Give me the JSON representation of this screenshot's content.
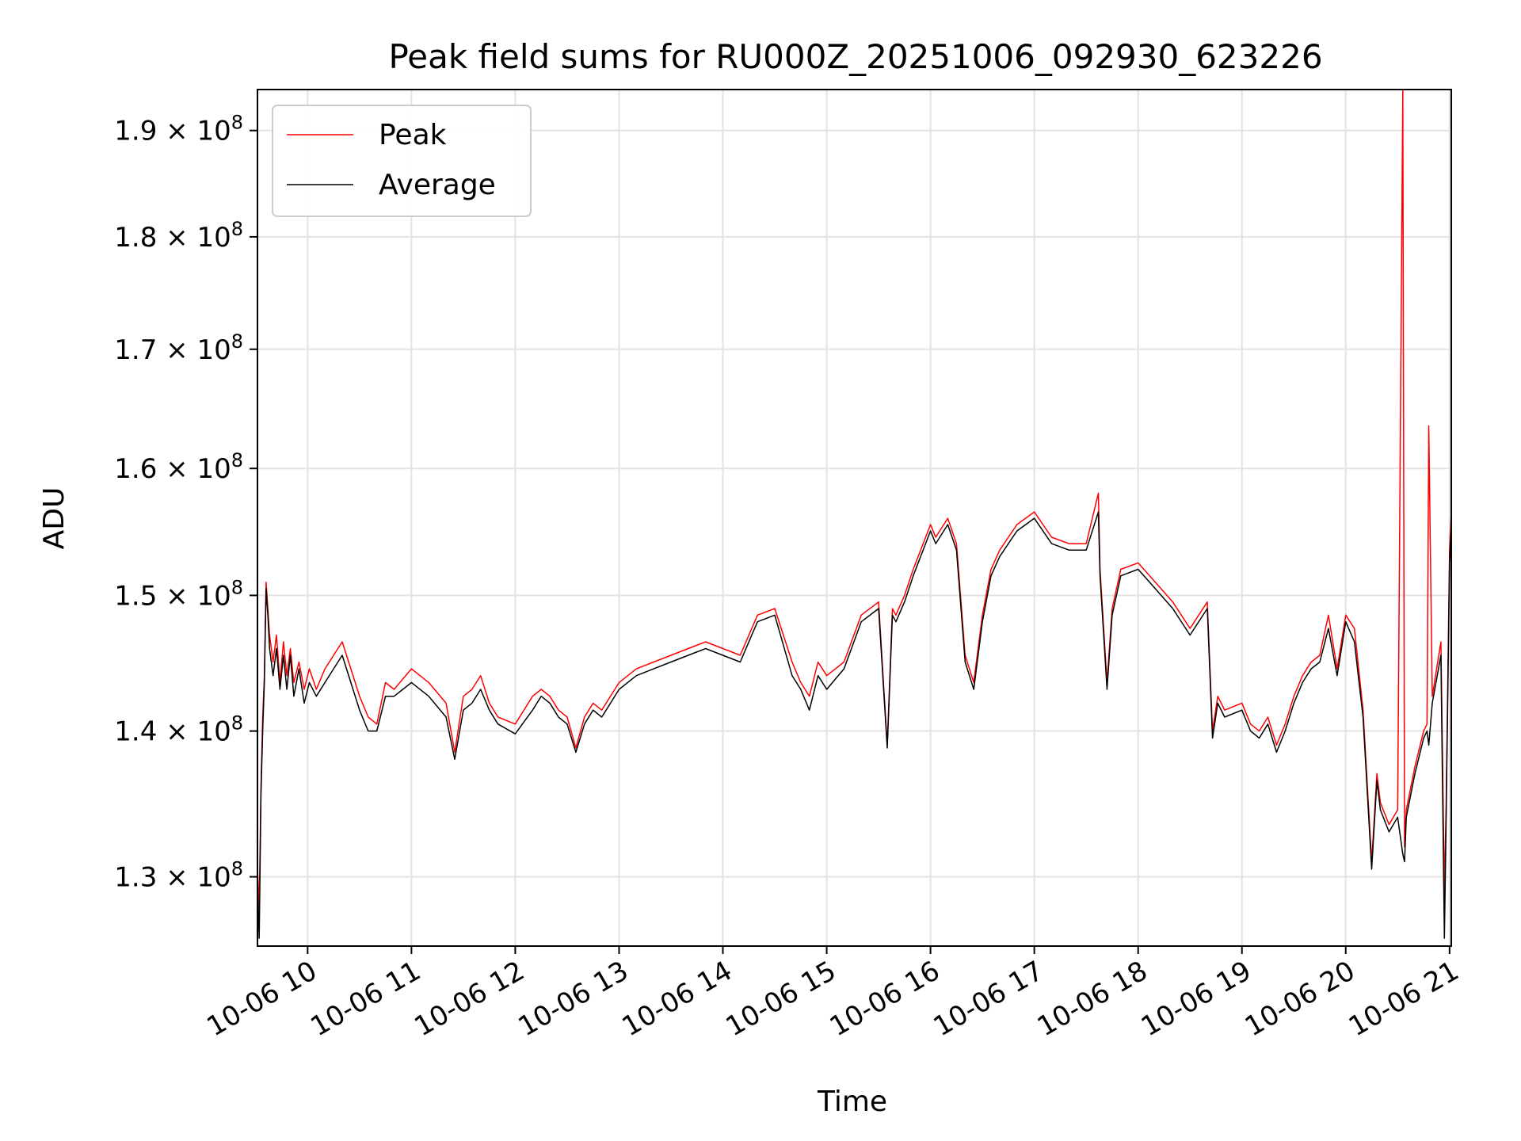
{
  "chart_data": {
    "type": "line",
    "title": "Peak field sums for RU000Z_20251006_092930_623226",
    "xlabel": "Time",
    "ylabel": "ADU",
    "yscale": "log",
    "grid": true,
    "legend_placement": "upper-left",
    "xlim": [
      "2025-10-06 09:31",
      "2025-10-06 21:01"
    ],
    "ylim": [
      125500000,
      194000000
    ],
    "x_ticks": [
      "10-06 10",
      "10-06 11",
      "10-06 12",
      "10-06 13",
      "10-06 14",
      "10-06 15",
      "10-06 16",
      "10-06 17",
      "10-06 18",
      "10-06 19",
      "10-06 20",
      "10-06 21"
    ],
    "y_ticks": [
      {
        "value": 130000000,
        "mantissa": "1.3",
        "base": "10",
        "exp": "8"
      },
      {
        "value": 140000000,
        "mantissa": "1.4",
        "base": "10",
        "exp": "8"
      },
      {
        "value": 150000000,
        "mantissa": "1.5",
        "base": "10",
        "exp": "8"
      },
      {
        "value": 160000000,
        "mantissa": "1.6",
        "base": "10",
        "exp": "8"
      },
      {
        "value": 170000000,
        "mantissa": "1.7",
        "base": "10",
        "exp": "8"
      },
      {
        "value": 180000000,
        "mantissa": "1.8",
        "base": "10",
        "exp": "8"
      },
      {
        "value": 190000000,
        "mantissa": "1.9",
        "base": "10",
        "exp": "8"
      }
    ],
    "series": [
      {
        "name": "Peak",
        "color": "#ff0000",
        "x": [
          "2025-10-06 09:31",
          "2025-10-06 09:32",
          "2025-10-06 09:33",
          "2025-10-06 09:34",
          "2025-10-06 09:35",
          "2025-10-06 09:36",
          "2025-10-06 09:37",
          "2025-10-06 09:38",
          "2025-10-06 09:40",
          "2025-10-06 09:42",
          "2025-10-06 09:44",
          "2025-10-06 09:46",
          "2025-10-06 09:48",
          "2025-10-06 09:50",
          "2025-10-06 09:52",
          "2025-10-06 09:55",
          "2025-10-06 09:58",
          "2025-10-06 10:01",
          "2025-10-06 10:05",
          "2025-10-06 10:10",
          "2025-10-06 10:15",
          "2025-10-06 10:20",
          "2025-10-06 10:25",
          "2025-10-06 10:30",
          "2025-10-06 10:35",
          "2025-10-06 10:40",
          "2025-10-06 10:45",
          "2025-10-06 10:50",
          "2025-10-06 11:00",
          "2025-10-06 11:10",
          "2025-10-06 11:20",
          "2025-10-06 11:25",
          "2025-10-06 11:30",
          "2025-10-06 11:35",
          "2025-10-06 11:40",
          "2025-10-06 11:45",
          "2025-10-06 11:50",
          "2025-10-06 12:00",
          "2025-10-06 12:10",
          "2025-10-06 12:15",
          "2025-10-06 12:20",
          "2025-10-06 12:25",
          "2025-10-06 12:30",
          "2025-10-06 12:35",
          "2025-10-06 12:40",
          "2025-10-06 12:45",
          "2025-10-06 12:50",
          "2025-10-06 13:00",
          "2025-10-06 13:10",
          "2025-10-06 13:20",
          "2025-10-06 13:30",
          "2025-10-06 13:40",
          "2025-10-06 13:50",
          "2025-10-06 14:00",
          "2025-10-06 14:10",
          "2025-10-06 14:20",
          "2025-10-06 14:30",
          "2025-10-06 14:40",
          "2025-10-06 14:45",
          "2025-10-06 14:50",
          "2025-10-06 14:55",
          "2025-10-06 15:00",
          "2025-10-06 15:10",
          "2025-10-06 15:20",
          "2025-10-06 15:30",
          "2025-10-06 15:35",
          "2025-10-06 15:38",
          "2025-10-06 15:40",
          "2025-10-06 15:45",
          "2025-10-06 15:50",
          "2025-10-06 16:00",
          "2025-10-06 16:03",
          "2025-10-06 16:10",
          "2025-10-06 16:15",
          "2025-10-06 16:20",
          "2025-10-06 16:25",
          "2025-10-06 16:30",
          "2025-10-06 16:35",
          "2025-10-06 16:40",
          "2025-10-06 16:45",
          "2025-10-06 16:50",
          "2025-10-06 17:00",
          "2025-10-06 17:10",
          "2025-10-06 17:20",
          "2025-10-06 17:30",
          "2025-10-06 17:37",
          "2025-10-06 17:38",
          "2025-10-06 17:42",
          "2025-10-06 17:45",
          "2025-10-06 17:50",
          "2025-10-06 18:00",
          "2025-10-06 18:10",
          "2025-10-06 18:20",
          "2025-10-06 18:30",
          "2025-10-06 18:40",
          "2025-10-06 18:43",
          "2025-10-06 18:46",
          "2025-10-06 18:50",
          "2025-10-06 19:00",
          "2025-10-06 19:05",
          "2025-10-06 19:10",
          "2025-10-06 19:15",
          "2025-10-06 19:20",
          "2025-10-06 19:25",
          "2025-10-06 19:30",
          "2025-10-06 19:35",
          "2025-10-06 19:40",
          "2025-10-06 19:45",
          "2025-10-06 19:50",
          "2025-10-06 19:55",
          "2025-10-06 20:00",
          "2025-10-06 20:05",
          "2025-10-06 20:10",
          "2025-10-06 20:15",
          "2025-10-06 20:18",
          "2025-10-06 20:20",
          "2025-10-06 20:25",
          "2025-10-06 20:30",
          "2025-10-06 20:33",
          "2025-10-06 20:34",
          "2025-10-06 20:35",
          "2025-10-06 20:40",
          "2025-10-06 20:45",
          "2025-10-06 20:47",
          "2025-10-06 20:48",
          "2025-10-06 20:50",
          "2025-10-06 20:55",
          "2025-10-06 20:57",
          "2025-10-06 20:58",
          "2025-10-06 21:00",
          "2025-10-06 21:01"
        ],
        "y": [
          130500000,
          128000000,
          136000000,
          141000000,
          144000000,
          151000000,
          149000000,
          147000000,
          145000000,
          147000000,
          143500000,
          146500000,
          144000000,
          146000000,
          143500000,
          145000000,
          143000000,
          144500000,
          143000000,
          144500000,
          145500000,
          146500000,
          144500000,
          142500000,
          141000000,
          140500000,
          143500000,
          143000000,
          144500000,
          143500000,
          142000000,
          138500000,
          142500000,
          143000000,
          144000000,
          142000000,
          141000000,
          140500000,
          142500000,
          143000000,
          142500000,
          141500000,
          141000000,
          138800000,
          141000000,
          142000000,
          141500000,
          143500000,
          144500000,
          145000000,
          145500000,
          146000000,
          146500000,
          146000000,
          145500000,
          148500000,
          149000000,
          145000000,
          143500000,
          142500000,
          145000000,
          144000000,
          145000000,
          148500000,
          149500000,
          139000000,
          149000000,
          148500000,
          150000000,
          152000000,
          155500000,
          154500000,
          156000000,
          154000000,
          145500000,
          143500000,
          148500000,
          152000000,
          153500000,
          154500000,
          155500000,
          156500000,
          154500000,
          154000000,
          154000000,
          158000000,
          152000000,
          143500000,
          149000000,
          152000000,
          152500000,
          151000000,
          149500000,
          147500000,
          149500000,
          140000000,
          142500000,
          141500000,
          142000000,
          140500000,
          140000000,
          141000000,
          139000000,
          140500000,
          142500000,
          144000000,
          145000000,
          145500000,
          148500000,
          144500000,
          148500000,
          147500000,
          141500000,
          131000000,
          137000000,
          135000000,
          133500000,
          134500000,
          194000000,
          132000000,
          134500000,
          137500000,
          140000000,
          140500000,
          163500000,
          142500000,
          146500000,
          129000000,
          134500000,
          153500000,
          156500000
        ],
        "linewidth_hint": "thin"
      },
      {
        "name": "Average",
        "color": "#000000",
        "x": [
          "2025-10-06 09:31",
          "2025-10-06 09:32",
          "2025-10-06 09:33",
          "2025-10-06 09:34",
          "2025-10-06 09:35",
          "2025-10-06 09:36",
          "2025-10-06 09:37",
          "2025-10-06 09:38",
          "2025-10-06 09:40",
          "2025-10-06 09:42",
          "2025-10-06 09:44",
          "2025-10-06 09:46",
          "2025-10-06 09:48",
          "2025-10-06 09:50",
          "2025-10-06 09:52",
          "2025-10-06 09:55",
          "2025-10-06 09:58",
          "2025-10-06 10:01",
          "2025-10-06 10:05",
          "2025-10-06 10:10",
          "2025-10-06 10:15",
          "2025-10-06 10:20",
          "2025-10-06 10:25",
          "2025-10-06 10:30",
          "2025-10-06 10:35",
          "2025-10-06 10:40",
          "2025-10-06 10:45",
          "2025-10-06 10:50",
          "2025-10-06 11:00",
          "2025-10-06 11:10",
          "2025-10-06 11:20",
          "2025-10-06 11:25",
          "2025-10-06 11:30",
          "2025-10-06 11:35",
          "2025-10-06 11:40",
          "2025-10-06 11:45",
          "2025-10-06 11:50",
          "2025-10-06 12:00",
          "2025-10-06 12:10",
          "2025-10-06 12:15",
          "2025-10-06 12:20",
          "2025-10-06 12:25",
          "2025-10-06 12:30",
          "2025-10-06 12:35",
          "2025-10-06 12:40",
          "2025-10-06 12:45",
          "2025-10-06 12:50",
          "2025-10-06 13:00",
          "2025-10-06 13:10",
          "2025-10-06 13:20",
          "2025-10-06 13:30",
          "2025-10-06 13:40",
          "2025-10-06 13:50",
          "2025-10-06 14:00",
          "2025-10-06 14:10",
          "2025-10-06 14:20",
          "2025-10-06 14:30",
          "2025-10-06 14:40",
          "2025-10-06 14:45",
          "2025-10-06 14:50",
          "2025-10-06 14:55",
          "2025-10-06 15:00",
          "2025-10-06 15:10",
          "2025-10-06 15:20",
          "2025-10-06 15:30",
          "2025-10-06 15:35",
          "2025-10-06 15:38",
          "2025-10-06 15:40",
          "2025-10-06 15:45",
          "2025-10-06 15:50",
          "2025-10-06 16:00",
          "2025-10-06 16:03",
          "2025-10-06 16:10",
          "2025-10-06 16:15",
          "2025-10-06 16:20",
          "2025-10-06 16:25",
          "2025-10-06 16:30",
          "2025-10-06 16:35",
          "2025-10-06 16:40",
          "2025-10-06 16:45",
          "2025-10-06 16:50",
          "2025-10-06 17:00",
          "2025-10-06 17:10",
          "2025-10-06 17:20",
          "2025-10-06 17:30",
          "2025-10-06 17:37",
          "2025-10-06 17:38",
          "2025-10-06 17:42",
          "2025-10-06 17:45",
          "2025-10-06 17:50",
          "2025-10-06 18:00",
          "2025-10-06 18:10",
          "2025-10-06 18:20",
          "2025-10-06 18:30",
          "2025-10-06 18:40",
          "2025-10-06 18:43",
          "2025-10-06 18:46",
          "2025-10-06 18:50",
          "2025-10-06 19:00",
          "2025-10-06 19:05",
          "2025-10-06 19:10",
          "2025-10-06 19:15",
          "2025-10-06 19:20",
          "2025-10-06 19:25",
          "2025-10-06 19:30",
          "2025-10-06 19:35",
          "2025-10-06 19:40",
          "2025-10-06 19:45",
          "2025-10-06 19:50",
          "2025-10-06 19:55",
          "2025-10-06 20:00",
          "2025-10-06 20:05",
          "2025-10-06 20:10",
          "2025-10-06 20:15",
          "2025-10-06 20:18",
          "2025-10-06 20:20",
          "2025-10-06 20:25",
          "2025-10-06 20:30",
          "2025-10-06 20:33",
          "2025-10-06 20:34",
          "2025-10-06 20:35",
          "2025-10-06 20:40",
          "2025-10-06 20:45",
          "2025-10-06 20:47",
          "2025-10-06 20:48",
          "2025-10-06 20:50",
          "2025-10-06 20:55",
          "2025-10-06 20:57",
          "2025-10-06 20:58",
          "2025-10-06 21:00",
          "2025-10-06 21:01"
        ],
        "y": [
          129500000,
          126000000,
          135500000,
          140000000,
          143500000,
          150500000,
          148500000,
          146000000,
          144000000,
          146000000,
          143000000,
          145500000,
          143000000,
          145500000,
          142500000,
          144500000,
          142000000,
          143500000,
          142500000,
          143500000,
          144500000,
          145500000,
          143500000,
          141500000,
          140000000,
          140000000,
          142500000,
          142500000,
          143500000,
          142500000,
          141000000,
          138000000,
          141500000,
          142000000,
          143000000,
          141500000,
          140500000,
          139800000,
          141500000,
          142500000,
          142000000,
          141000000,
          140500000,
          138500000,
          140500000,
          141500000,
          141000000,
          143000000,
          144000000,
          144500000,
          145000000,
          145500000,
          146000000,
          145500000,
          145000000,
          148000000,
          148500000,
          144000000,
          143000000,
          141500000,
          144000000,
          143000000,
          144500000,
          148000000,
          149000000,
          138800000,
          148500000,
          148000000,
          149500000,
          151500000,
          155000000,
          154000000,
          155500000,
          153500000,
          145000000,
          143000000,
          148000000,
          151500000,
          153000000,
          154000000,
          155000000,
          156000000,
          154000000,
          153500000,
          153500000,
          156500000,
          151500000,
          143000000,
          148500000,
          151500000,
          152000000,
          150500000,
          149000000,
          147000000,
          149000000,
          139500000,
          142000000,
          141000000,
          141500000,
          140000000,
          139500000,
          140500000,
          138500000,
          140000000,
          142000000,
          143500000,
          144500000,
          145000000,
          147500000,
          144000000,
          148000000,
          146500000,
          141000000,
          130500000,
          136500000,
          134500000,
          133000000,
          134000000,
          131500000,
          131000000,
          134000000,
          137000000,
          139500000,
          140000000,
          139000000,
          142000000,
          145500000,
          126000000,
          133500000,
          152500000,
          155500000
        ],
        "linewidth_hint": "thin"
      }
    ]
  }
}
